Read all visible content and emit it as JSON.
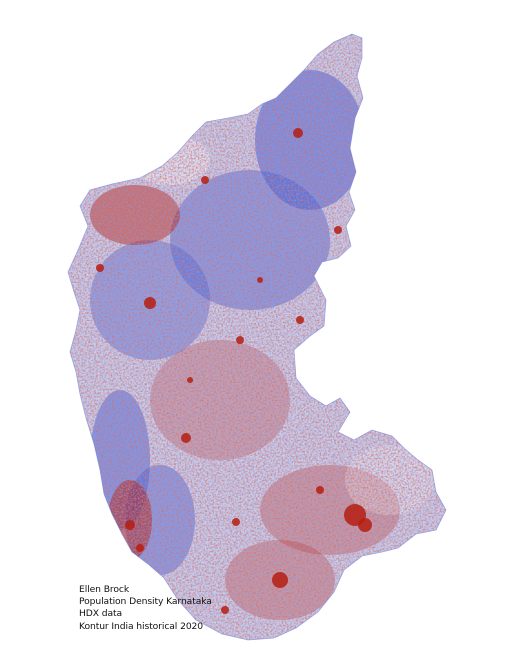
{
  "map": {
    "region": "Karnataka",
    "colors": {
      "low": "#3a5bd9",
      "mid": "#f2ecee",
      "high": "#b51d10"
    }
  },
  "credits": {
    "author": "Ellen Brock",
    "title": "Population Density Karnataka",
    "source": "HDX data",
    "dataset": "Kontur India historical 2020"
  }
}
